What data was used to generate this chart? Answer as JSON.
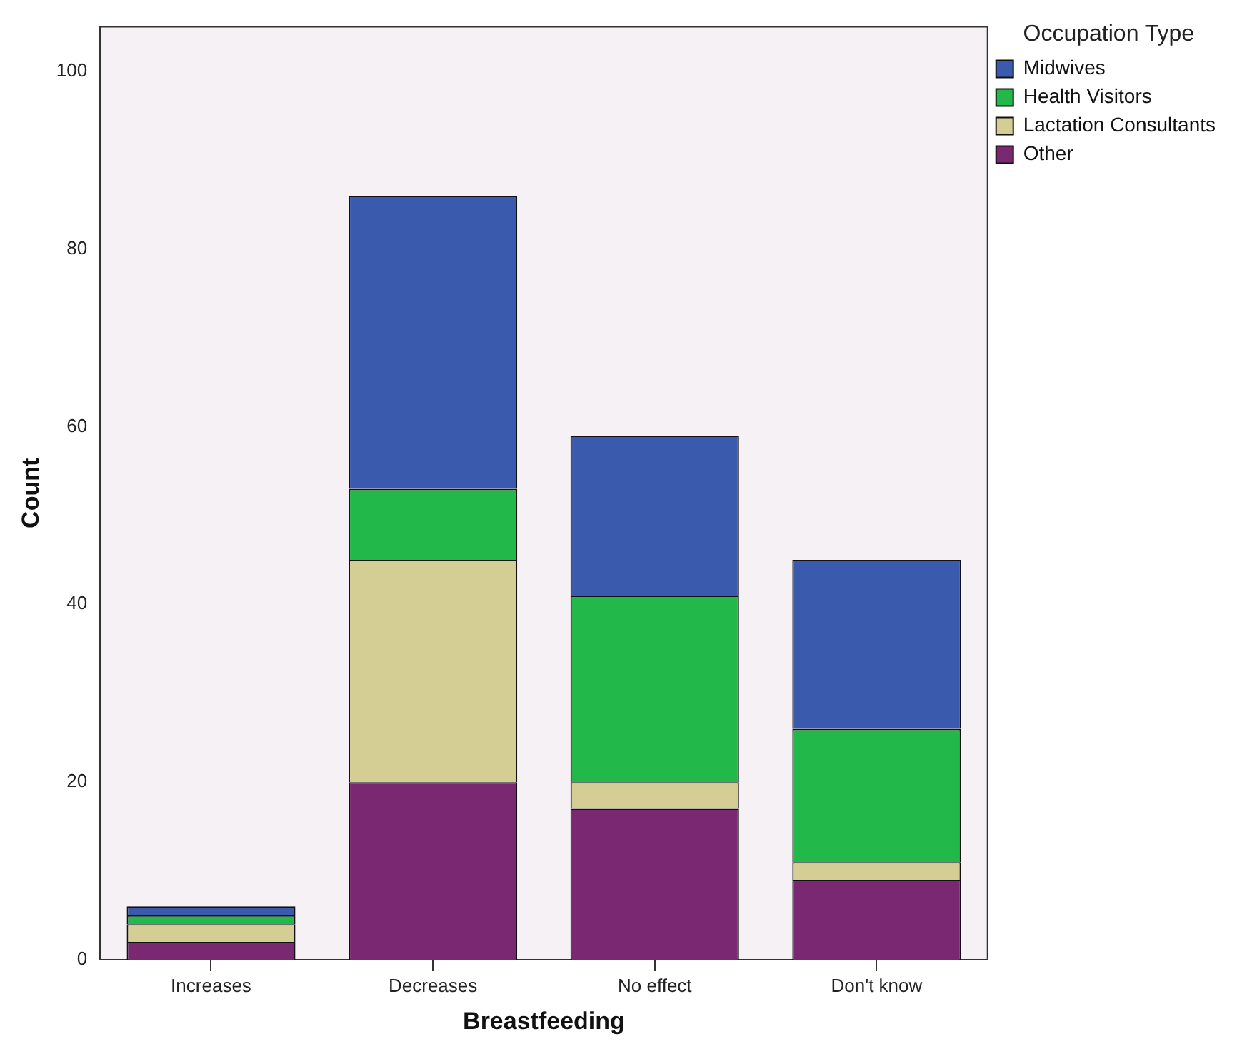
{
  "chart_data": {
    "type": "bar",
    "stacked": true,
    "xlabel": "Breastfeeding",
    "ylabel": "Count",
    "legend_title": "Occupation Type",
    "legend": "top right",
    "categories": [
      "Increases",
      "Decreases",
      "No effect",
      "Don't know"
    ],
    "series": [
      {
        "name": "Other",
        "color": "#7b2872",
        "values": [
          2,
          20,
          17,
          9
        ]
      },
      {
        "name": "Lactation Consultants",
        "color": "#d5ce94",
        "values": [
          2,
          25,
          3,
          2
        ]
      },
      {
        "name": "Health Visitors",
        "color": "#23b84a",
        "values": [
          1,
          8,
          21,
          15
        ]
      },
      {
        "name": "Midwives",
        "color": "#3a5aad",
        "values": [
          1,
          33,
          18,
          19
        ]
      }
    ],
    "ylim": [
      0,
      105
    ],
    "yticks": [
      0,
      20,
      40,
      60,
      80,
      100
    ],
    "grid": false
  }
}
